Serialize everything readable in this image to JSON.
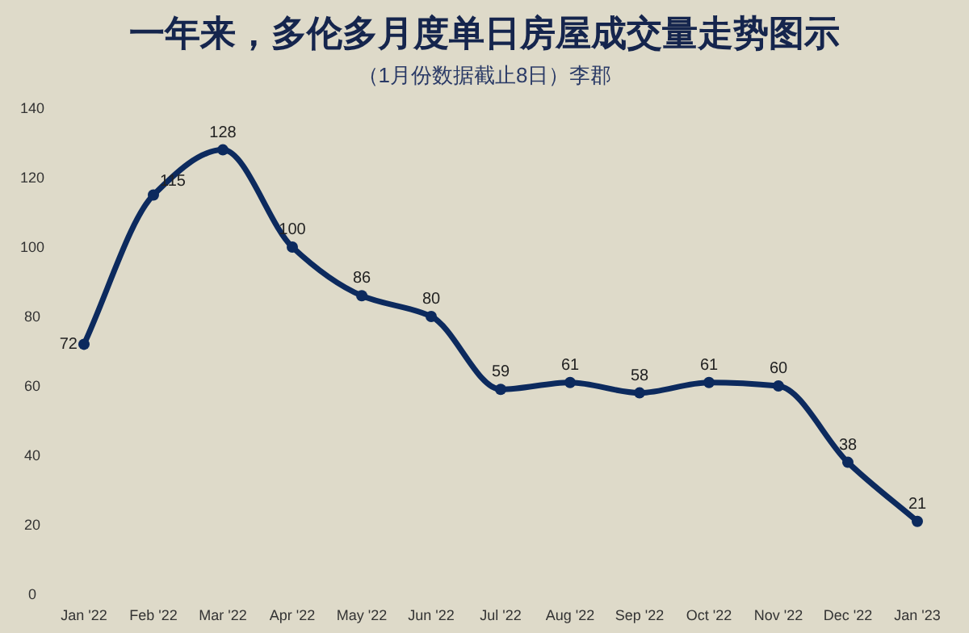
{
  "chart_data": {
    "type": "line",
    "title": "一年来，多伦多月度单日房屋成交量走势图示",
    "subtitle": "（1月份数据截止8日）李郡",
    "categories": [
      "Jan '22",
      "Feb '22",
      "Mar '22",
      "Apr '22",
      "May '22",
      "Jun '22",
      "Jul '22",
      "Aug '22",
      "Sep '22",
      "Oct '22",
      "Nov '22",
      "Dec '22",
      "Jan '23"
    ],
    "series": [
      {
        "color": "#0c2a5e",
        "values": [
          72,
          115,
          128,
          100,
          86,
          80,
          59,
          61,
          58,
          61,
          60,
          38,
          21
        ]
      }
    ],
    "ylim": [
      0,
      140
    ],
    "yticks": [
      0,
      20,
      40,
      60,
      80,
      100,
      120,
      140
    ],
    "data_labels": true,
    "marker": "circle",
    "line_style": "solid",
    "grid": false
  }
}
